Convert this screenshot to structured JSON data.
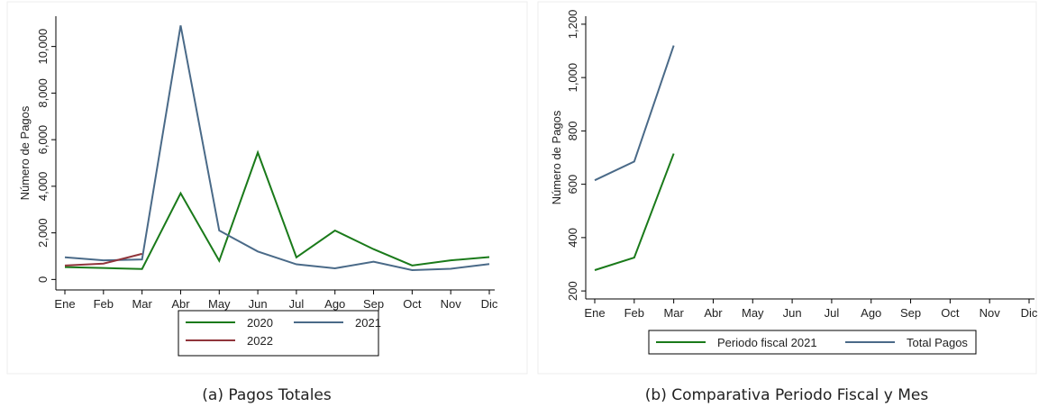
{
  "chart_data": [
    {
      "type": "line",
      "caption": "(a) Pagos Totales",
      "y_label": "Número de Pagos",
      "categories": [
        "Ene",
        "Feb",
        "Mar",
        "Abr",
        "May",
        "Jun",
        "Jul",
        "Ago",
        "Sep",
        "Oct",
        "Nov",
        "Dic"
      ],
      "ylim": [
        -450,
        11300
      ],
      "yticks": [
        0,
        {
          "value": 2000,
          "label": "2,000"
        },
        {
          "value": 4000,
          "label": "4,000"
        },
        {
          "value": 6000,
          "label": "6,000"
        },
        {
          "value": 8000,
          "label": "8,000"
        },
        {
          "value": 10000,
          "label": "10,000"
        }
      ],
      "legend": "bottom",
      "series": [
        {
          "name": "2020",
          "color": "#1a7a1a",
          "values": [
            530,
            490,
            450,
            3700,
            800,
            5450,
            950,
            2100,
            1300,
            600,
            820,
            960
          ]
        },
        {
          "name": "2021",
          "color": "#4a6a88",
          "values": [
            950,
            820,
            860,
            10900,
            2100,
            1200,
            650,
            480,
            760,
            400,
            460,
            660
          ]
        },
        {
          "name": "2022",
          "color": "#90353b",
          "values": [
            600,
            680,
            1100,
            null,
            null,
            null,
            null,
            null,
            null,
            null,
            null,
            null
          ]
        }
      ]
    },
    {
      "type": "line",
      "caption": "(b) Comparativa Periodo Fiscal y Mes",
      "y_label": "Número de Pagos",
      "categories": [
        "Ene",
        "Feb",
        "Mar",
        "Abr",
        "May",
        "Jun",
        "Jul",
        "Ago",
        "Sep",
        "Oct",
        "Nov",
        "Dic"
      ],
      "ylim": [
        170,
        1230
      ],
      "yticks": [
        200,
        400,
        600,
        800,
        {
          "value": 1000,
          "label": "1,000"
        },
        {
          "value": 1200,
          "label": "1,200"
        }
      ],
      "legend": "bottom",
      "series": [
        {
          "name": "Periodo fiscal 2021",
          "color": "#1a7a1a",
          "values": [
            278,
            325,
            715,
            null,
            null,
            null,
            null,
            null,
            null,
            null,
            null,
            null
          ]
        },
        {
          "name": "Total Pagos",
          "color": "#4a6a88",
          "values": [
            615,
            685,
            1120,
            null,
            null,
            null,
            null,
            null,
            null,
            null,
            null,
            null
          ]
        }
      ]
    }
  ]
}
